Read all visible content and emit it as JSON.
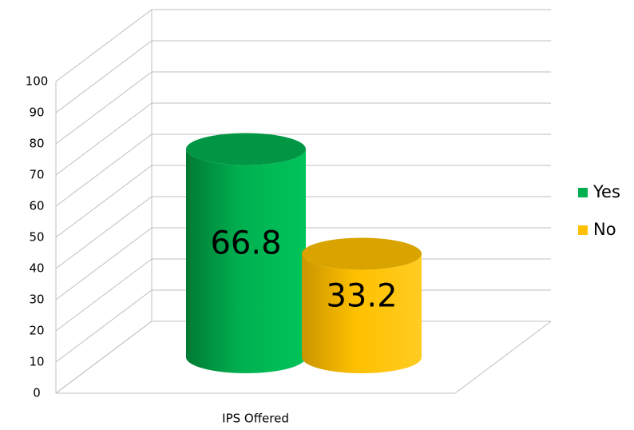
{
  "chart_data": {
    "type": "bar",
    "categories": [
      "IPS Offered"
    ],
    "series": [
      {
        "name": "Yes",
        "color": "#00b050",
        "values": [
          66.8
        ]
      },
      {
        "name": "No",
        "color": "#ffc000",
        "values": [
          33.2
        ]
      }
    ],
    "ylim": [
      0,
      100
    ],
    "yticks": [
      0,
      10,
      20,
      30,
      40,
      50,
      60,
      70,
      80,
      90,
      100
    ],
    "grid": true,
    "legend": "right"
  }
}
